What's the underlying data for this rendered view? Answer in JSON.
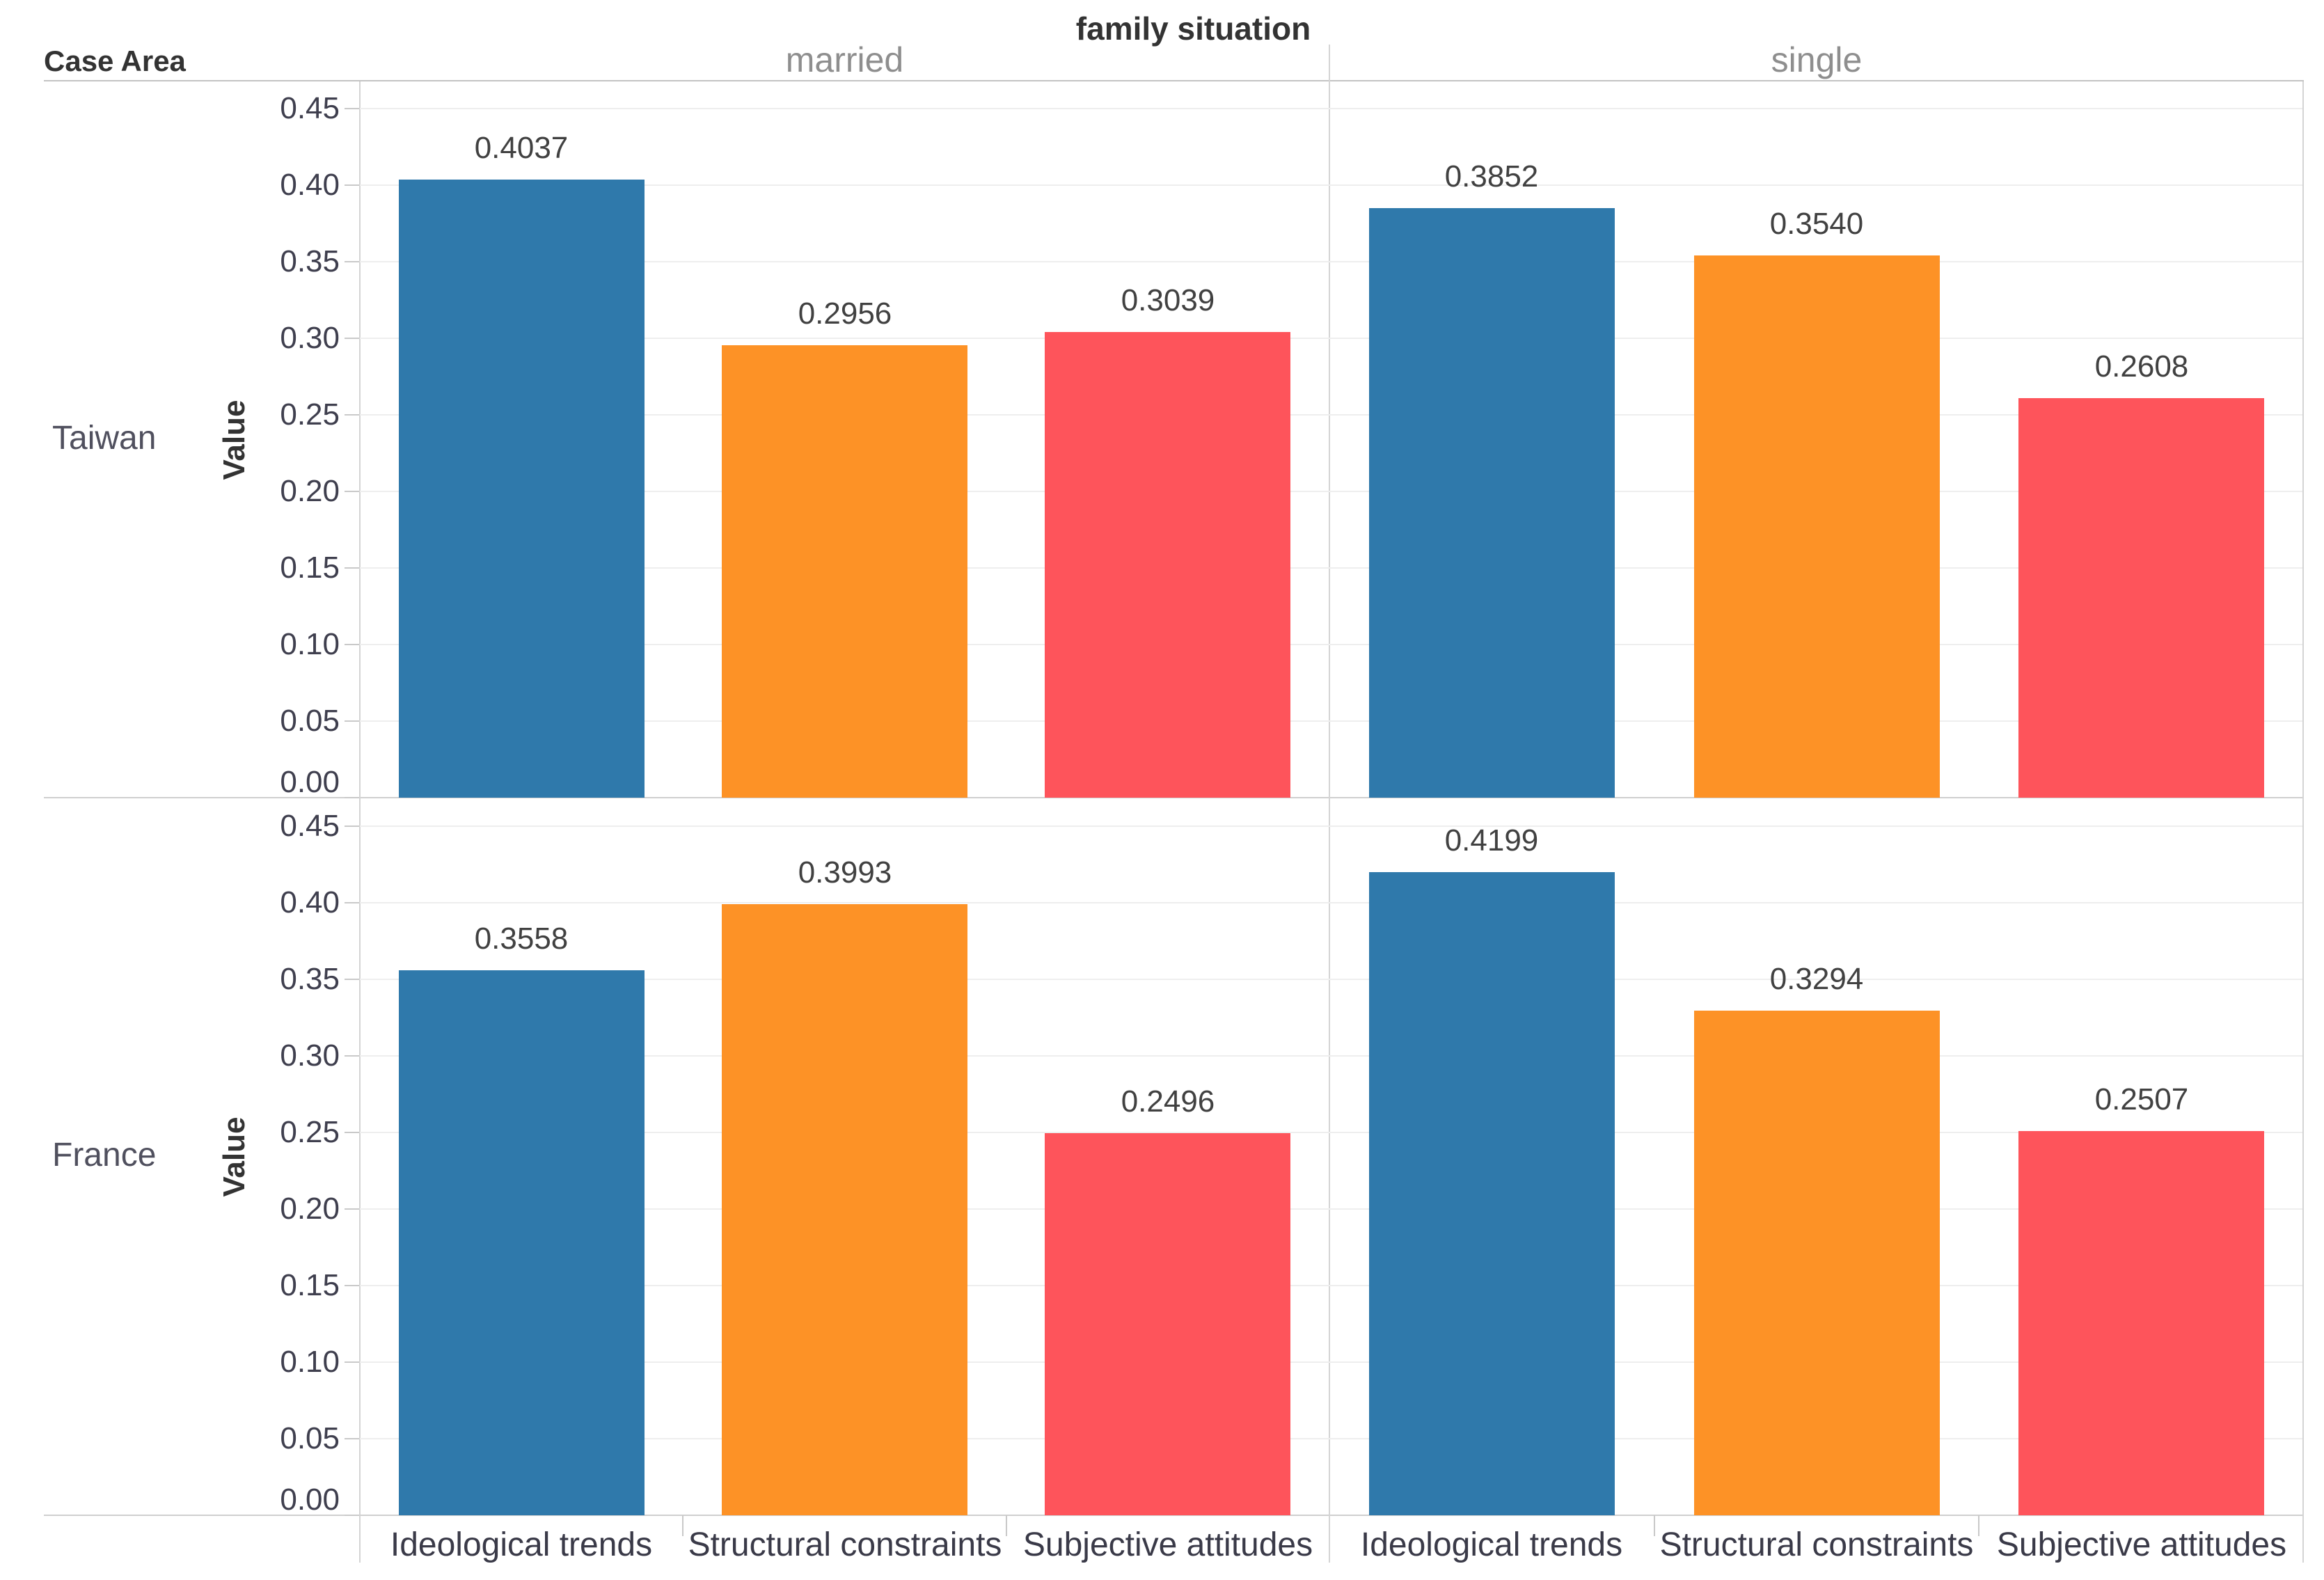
{
  "title": "family situation",
  "row_field_label": "Case Area",
  "col_headers": [
    "married",
    "single"
  ],
  "row_headers": [
    "Taiwan",
    "France"
  ],
  "y_axis_label": "Value",
  "chart_data": {
    "type": "bar",
    "facet": {
      "rows_field": "Case Area",
      "columns_field": "family situation"
    },
    "categories": [
      "Ideological trends",
      "Structural constraints",
      "Subjective attitudes"
    ],
    "bar_colors": [
      "#2f79ab",
      "#fd9226",
      "#fe545b"
    ],
    "ylabel": "Value",
    "ylim": [
      0,
      0.468
    ],
    "ytick_step": 0.05,
    "yticks": [
      "0.00",
      "0.05",
      "0.10",
      "0.15",
      "0.20",
      "0.25",
      "0.30",
      "0.35",
      "0.40",
      "0.45"
    ],
    "grid": true,
    "legend_position": "none",
    "panels": [
      {
        "row": "Taiwan",
        "column": "married",
        "values": [
          0.4037,
          0.2956,
          0.3039
        ]
      },
      {
        "row": "Taiwan",
        "column": "single",
        "values": [
          0.3852,
          0.354,
          0.2608
        ]
      },
      {
        "row": "France",
        "column": "married",
        "values": [
          0.3558,
          0.3993,
          0.2496
        ]
      },
      {
        "row": "France",
        "column": "single",
        "values": [
          0.4199,
          0.3294,
          0.2507
        ]
      }
    ],
    "value_label_decimals": 4
  },
  "colors": {
    "background": "#ffffff",
    "grid": "#eeeeee",
    "border": "#d4d4d4",
    "axis_line": "#cfcfcf",
    "header_line": "#c3c3c3",
    "tick": "#c9c9c9",
    "title_text": "#333333",
    "column_header_text": "#8e8e8e",
    "row_header_text": "#50505e",
    "tick_label_text": "#3f3f4e",
    "value_label_text": "#414141",
    "category_label_text": "#3a3a48"
  }
}
